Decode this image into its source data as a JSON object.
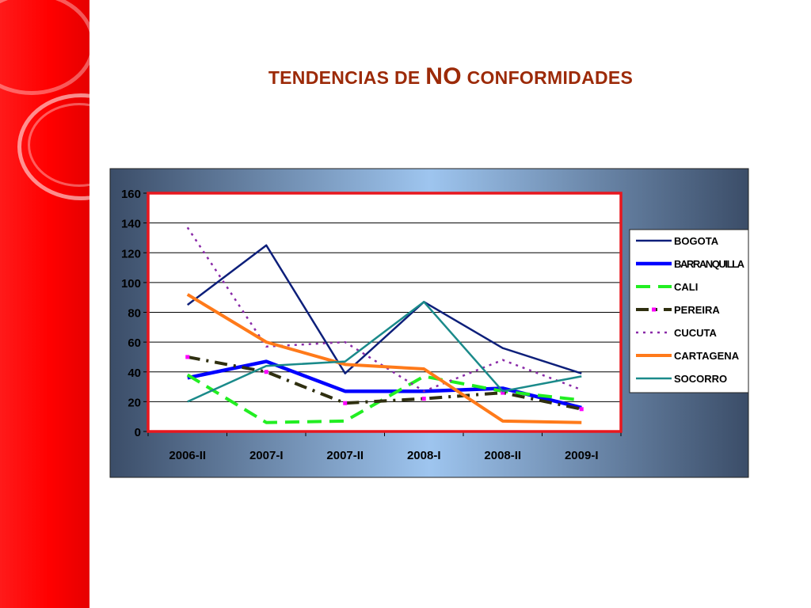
{
  "slide": {
    "title_part1": "TENDENCIAS DE ",
    "title_part2": "NO",
    "title_part3": " CONFORMIDADES"
  },
  "colors": {
    "side_band": "#ff0000",
    "title": "#9c2a08",
    "plot_border": "#e8171e"
  },
  "chart_data": {
    "type": "line",
    "title": "",
    "xlabel": "",
    "ylabel": "",
    "ylim": [
      0,
      160
    ],
    "yticks": [
      0,
      20,
      40,
      60,
      80,
      100,
      120,
      140,
      160
    ],
    "grid": true,
    "legend_position": "right",
    "categories": [
      "2006-II",
      "2007-I",
      "2007-II",
      "2008-I",
      "2008-II",
      "2009-I"
    ],
    "series": [
      {
        "name": "BOGOTA",
        "color": "#0d1f7a",
        "dash": "",
        "width": 2.5,
        "values": [
          85,
          125,
          39,
          87,
          56,
          39
        ]
      },
      {
        "name": "BARRANQUILLA",
        "color": "#0000ff",
        "dash": "",
        "width": 4.5,
        "values": [
          36,
          47,
          27,
          27,
          29,
          16
        ]
      },
      {
        "name": "CALI",
        "color": "#22ee22",
        "dash": "18,10",
        "width": 4,
        "values": [
          38,
          6,
          7,
          37,
          27,
          21
        ]
      },
      {
        "name": "PEREIRA",
        "color": "#2f2f10",
        "dash": "16,8,3,8",
        "width": 4,
        "values": [
          50,
          40,
          19,
          22,
          26,
          15
        ],
        "marker_color": "#ff00ff"
      },
      {
        "name": "CUCUTA",
        "color": "#8a2aa8",
        "dash": "3,6",
        "width": 2.5,
        "values": [
          137,
          57,
          60,
          27,
          48,
          28
        ]
      },
      {
        "name": "CARTAGENA",
        "color": "#ff7a1a",
        "dash": "",
        "width": 4,
        "values": [
          92,
          60,
          45,
          42,
          7,
          6
        ]
      },
      {
        "name": "SOCORRO",
        "color": "#1a8a8a",
        "dash": "",
        "width": 2.5,
        "values": [
          20,
          44,
          47,
          87,
          27,
          37
        ]
      }
    ]
  }
}
